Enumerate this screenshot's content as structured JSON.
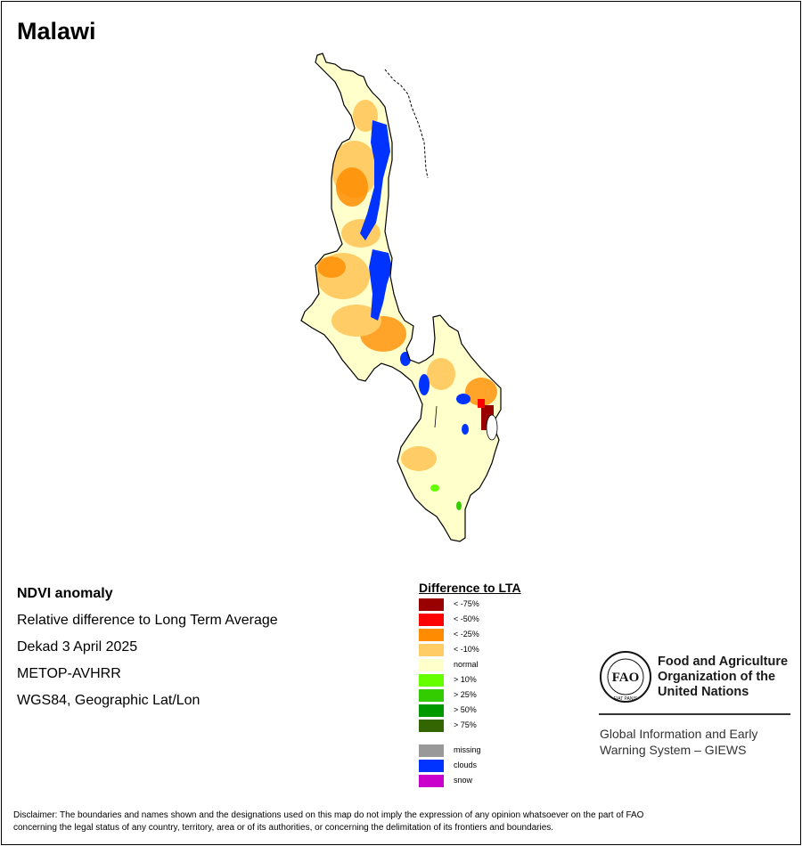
{
  "title": "Malawi",
  "info": {
    "product": "NDVI anomaly",
    "description": "Relative difference to Long Term Average",
    "period": "Dekad 3 April 2025",
    "sensor": "METOP-AVHRR",
    "projection": "WGS84, Geographic Lat/Lon"
  },
  "legend": {
    "title": "Difference to LTA",
    "items": [
      {
        "label": "< -75%",
        "color": "#990000"
      },
      {
        "label": "< -50%",
        "color": "#ff0000"
      },
      {
        "label": "< -25%",
        "color": "#ff8c00"
      },
      {
        "label": "< -10%",
        "color": "#ffcc66"
      },
      {
        "label": "normal",
        "color": "#ffffcc"
      },
      {
        "label": "> 10%",
        "color": "#66ff00"
      },
      {
        "label": "> 25%",
        "color": "#33cc00"
      },
      {
        "label": "> 50%",
        "color": "#009900"
      },
      {
        "label": "> 75%",
        "color": "#336600"
      }
    ],
    "extra": [
      {
        "label": "missing",
        "color": "#999999"
      },
      {
        "label": "clouds",
        "color": "#0033ff"
      },
      {
        "label": "snow",
        "color": "#cc00cc"
      }
    ]
  },
  "organization": {
    "logo_text": "FAO",
    "logo_motto": "FIAT PANIS",
    "name_line1": "Food and Agriculture",
    "name_line2": "Organization of the",
    "name_line3": "United Nations",
    "system_line1": "Global Information and Early",
    "system_line2": "Warning System – GIEWS"
  },
  "disclaimer_line1": "Disclaimer: The boundaries and names shown and the designations used on this map do not imply the expression of any opinion whatsoever on the part of FAO",
  "disclaimer_line2": "concerning the legal status of any country, territory, area or of its authorities, or concerning the delimitation of its frontiers and boundaries."
}
